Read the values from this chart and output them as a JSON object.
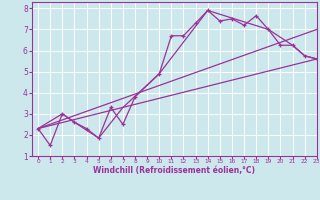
{
  "xlabel": "Windchill (Refroidissement éolien,°C)",
  "bg_color": "#cce8ec",
  "line_color": "#993399",
  "grid_color": "#ffffff",
  "line1_x": [
    0,
    1,
    2,
    3,
    4,
    5,
    6,
    7,
    8,
    10,
    11,
    12,
    13,
    14,
    15,
    16,
    17,
    18,
    19,
    20,
    21,
    22,
    23
  ],
  "line1_y": [
    2.3,
    1.5,
    3.0,
    2.6,
    2.3,
    1.85,
    3.3,
    2.5,
    3.8,
    4.9,
    6.7,
    6.7,
    7.3,
    7.9,
    7.4,
    7.5,
    7.2,
    7.65,
    7.0,
    6.25,
    6.25,
    5.75,
    5.6
  ],
  "line2_x": [
    0,
    2,
    3,
    5,
    7,
    10,
    14,
    19,
    21,
    22,
    23
  ],
  "line2_y": [
    2.3,
    3.0,
    2.6,
    1.85,
    3.3,
    4.9,
    7.9,
    7.0,
    6.25,
    5.75,
    5.6
  ],
  "line3_x": [
    0,
    23
  ],
  "line3_y": [
    2.3,
    5.6
  ],
  "line4_x": [
    0,
    23
  ],
  "line4_y": [
    2.3,
    7.0
  ],
  "xlim": [
    -0.5,
    23
  ],
  "ylim": [
    1,
    8.3
  ],
  "xticks": [
    0,
    1,
    2,
    3,
    4,
    5,
    6,
    7,
    8,
    9,
    10,
    11,
    12,
    13,
    14,
    15,
    16,
    17,
    18,
    19,
    20,
    21,
    22,
    23
  ],
  "yticks": [
    1,
    2,
    3,
    4,
    5,
    6,
    7,
    8
  ]
}
